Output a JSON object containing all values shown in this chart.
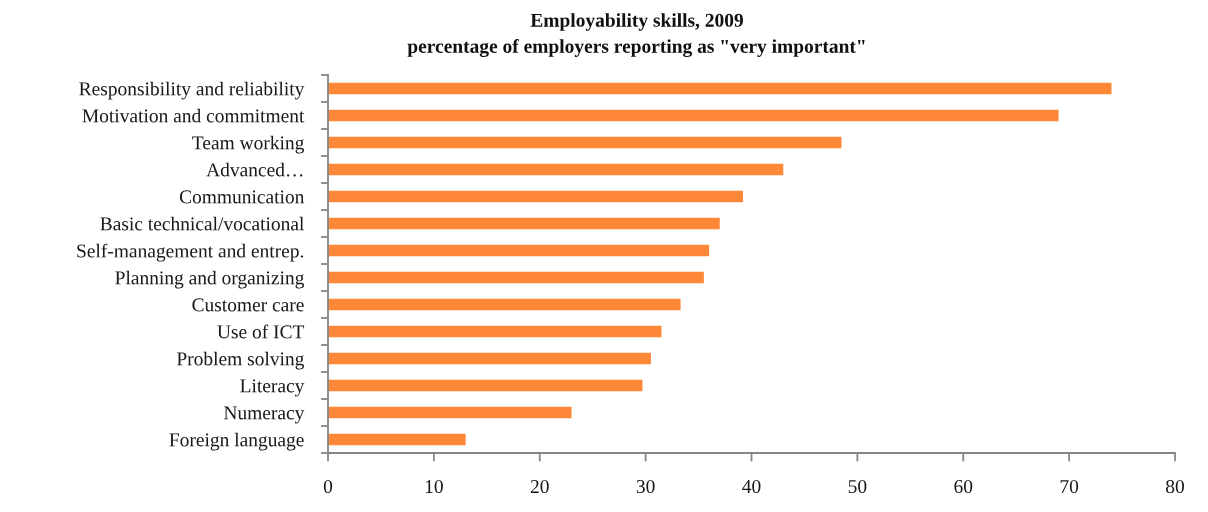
{
  "chart_data": {
    "type": "bar",
    "orientation": "horizontal",
    "title": "Employability skills, 2009",
    "subtitle": "percentage of employers reporting as \"very important\"",
    "categories": [
      "Responsibility and reliability",
      "Motivation and commitment",
      "Team working",
      "Advanced…",
      "Communication",
      "Basic technical/vocational",
      "Self-management and entrep.",
      "Planning and organizing",
      "Customer care",
      "Use of ICT",
      "Problem solving",
      "Literacy",
      "Numeracy",
      "Foreign language"
    ],
    "values": [
      74,
      69,
      48.5,
      43,
      39.2,
      37,
      36,
      35.5,
      33.3,
      31.5,
      30.5,
      29.7,
      23,
      13
    ],
    "color": "#fe8837",
    "xlim": [
      0,
      80
    ],
    "xticks": [
      0,
      10,
      20,
      30,
      40,
      50,
      60,
      70,
      80
    ],
    "grid": false
  }
}
